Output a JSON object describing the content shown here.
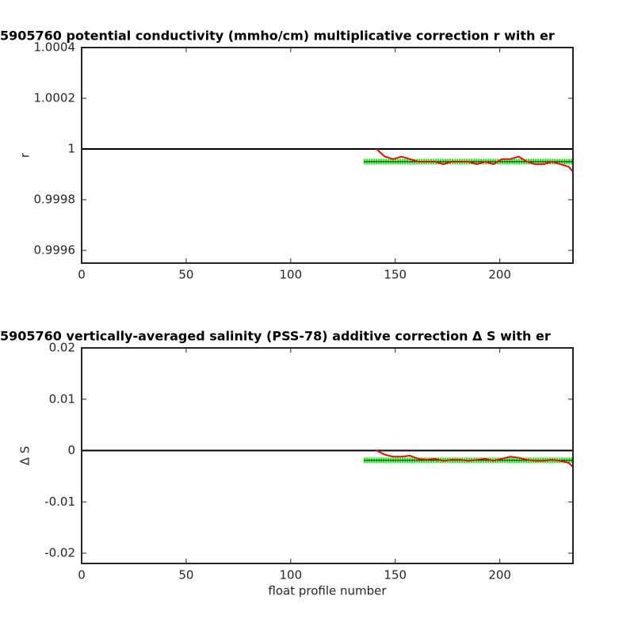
{
  "chart_data": [
    {
      "type": "line",
      "title": "5905760 potential conductivity (mmho/cm) multiplicative correction r with er",
      "ylabel": "r",
      "xlim": [
        0,
        235
      ],
      "ylim": [
        0.99955,
        1.0004
      ],
      "xticks": [
        0,
        50,
        100,
        150,
        200
      ],
      "yticks": [
        0.9996,
        0.9998,
        1,
        1.0002,
        1.0004
      ],
      "series": [
        {
          "color": "#000000",
          "x": [
            0,
            235
          ],
          "values": [
            1,
            1
          ]
        },
        {
          "color": "#00ff00",
          "x": [
            135,
            235
          ],
          "values": [
            0.99995,
            0.99995
          ]
        },
        {
          "color": "#ff0000",
          "x": [
            141,
            145,
            149,
            153,
            157,
            161,
            165,
            169,
            173,
            177,
            181,
            185,
            189,
            193,
            197,
            201,
            205,
            209,
            213,
            217,
            221,
            225,
            229,
            233,
            235
          ],
          "values": [
            1.0,
            0.99997,
            0.99996,
            0.99997,
            0.99996,
            0.99995,
            0.99995,
            0.99995,
            0.99994,
            0.99995,
            0.99995,
            0.99995,
            0.99994,
            0.99995,
            0.99994,
            0.99996,
            0.99996,
            0.99997,
            0.99995,
            0.99994,
            0.99994,
            0.99995,
            0.99994,
            0.99993,
            0.99991
          ]
        }
      ]
    },
    {
      "type": "line",
      "title": "5905760 vertically-averaged salinity (PSS-78) additive correction Δ S with er",
      "ylabel": "Δ S",
      "xlabel": "float profile number",
      "xlim": [
        0,
        235
      ],
      "ylim": [
        -0.022,
        0.02
      ],
      "xticks": [
        0,
        50,
        100,
        150,
        200
      ],
      "yticks": [
        -0.02,
        -0.01,
        0,
        0.01,
        0.02
      ],
      "series": [
        {
          "color": "#000000",
          "x": [
            0,
            235
          ],
          "values": [
            0,
            0
          ]
        },
        {
          "color": "#00ff00",
          "x": [
            135,
            235
          ],
          "values": [
            -0.0019,
            -0.0019
          ]
        },
        {
          "color": "#ff0000",
          "x": [
            141,
            145,
            149,
            153,
            157,
            161,
            165,
            169,
            173,
            177,
            181,
            185,
            189,
            193,
            197,
            201,
            205,
            209,
            213,
            217,
            221,
            225,
            229,
            233,
            235
          ],
          "values": [
            0,
            -0.0008,
            -0.0012,
            -0.0012,
            -0.001,
            -0.0016,
            -0.0018,
            -0.0016,
            -0.002,
            -0.0018,
            -0.0018,
            -0.002,
            -0.0018,
            -0.0016,
            -0.002,
            -0.0016,
            -0.0012,
            -0.0014,
            -0.0018,
            -0.002,
            -0.002,
            -0.0018,
            -0.002,
            -0.0024,
            -0.0032
          ]
        }
      ]
    }
  ]
}
